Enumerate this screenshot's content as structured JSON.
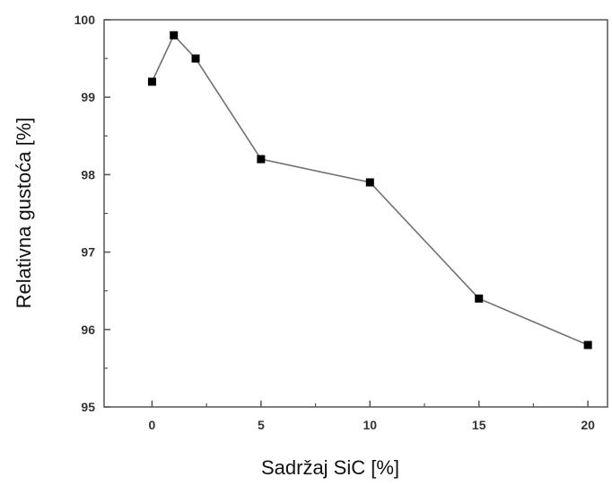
{
  "chart_data": {
    "type": "line",
    "title": "",
    "xlabel": "Sadržaj SiC [%]",
    "ylabel": "Relativna gustoća [%]",
    "x": [
      0,
      1,
      2,
      5,
      10,
      15,
      20
    ],
    "series": [
      {
        "values": [
          99.2,
          99.8,
          99.5,
          98.2,
          97.9,
          96.4,
          95.8
        ]
      }
    ],
    "xlim": [
      -2.2,
      20.9
    ],
    "ylim": [
      95,
      100
    ],
    "xticks": [
      "0",
      "5",
      "10",
      "15",
      "20"
    ],
    "yticks": [
      "95",
      "96",
      "97",
      "98",
      "99",
      "100"
    ],
    "marker": "square",
    "grid": false,
    "line_color": "#707070",
    "marker_color": "#000000",
    "axis_color": "#555555"
  }
}
